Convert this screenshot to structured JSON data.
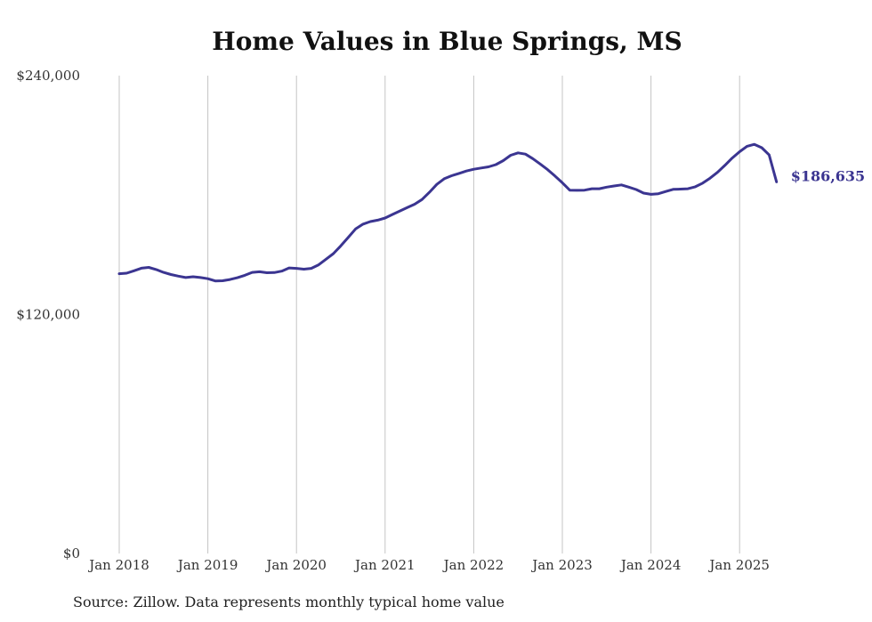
{
  "chart_data": {
    "type": "line",
    "title": "Home Values in Blue Springs, MS",
    "xlabel": "",
    "ylabel": "",
    "x_ticks": [
      "Jan 2018",
      "Jan 2019",
      "Jan 2020",
      "Jan 2021",
      "Jan 2022",
      "Jan 2023",
      "Jan 2024",
      "Jan 2025"
    ],
    "y_ticks": [
      "$0",
      "$120,000",
      "$240,000"
    ],
    "ylim": [
      0,
      240000
    ],
    "xlim": [
      "2018-01",
      "2025-06"
    ],
    "grid": "vertical",
    "legend": "none",
    "line_color": "#3b3591",
    "end_label": "$186,635",
    "series": [
      {
        "x": [
          "2018-01",
          "2018-02",
          "2018-03",
          "2018-04",
          "2018-05",
          "2018-06",
          "2018-07",
          "2018-08",
          "2018-09",
          "2018-10",
          "2018-11",
          "2018-12",
          "2019-01",
          "2019-02",
          "2019-03",
          "2019-04",
          "2019-05",
          "2019-06",
          "2019-07",
          "2019-08",
          "2019-09",
          "2019-10",
          "2019-11",
          "2019-12",
          "2020-01",
          "2020-02",
          "2020-03",
          "2020-04",
          "2020-05",
          "2020-06",
          "2020-07",
          "2020-08",
          "2020-09",
          "2020-10",
          "2020-11",
          "2020-12",
          "2021-01",
          "2021-02",
          "2021-03",
          "2021-04",
          "2021-05",
          "2021-06",
          "2021-07",
          "2021-08",
          "2021-09",
          "2021-10",
          "2021-11",
          "2021-12",
          "2022-01",
          "2022-02",
          "2022-03",
          "2022-04",
          "2022-05",
          "2022-06",
          "2022-07",
          "2022-08",
          "2022-09",
          "2022-10",
          "2022-11",
          "2022-12",
          "2023-01",
          "2023-02",
          "2023-03",
          "2023-04",
          "2023-05",
          "2023-06",
          "2023-07",
          "2023-08",
          "2023-09",
          "2023-10",
          "2023-11",
          "2023-12",
          "2024-01",
          "2024-02",
          "2024-03",
          "2024-04",
          "2024-05",
          "2024-06",
          "2024-07",
          "2024-08",
          "2024-09",
          "2024-10",
          "2024-11",
          "2024-12",
          "2025-01",
          "2025-02",
          "2025-03",
          "2025-04",
          "2025-05",
          "2025-06"
        ],
        "values": [
          140500,
          140800,
          142000,
          143300,
          143700,
          142600,
          141200,
          140100,
          139300,
          138600,
          139000,
          138600,
          138000,
          136900,
          137000,
          137600,
          138500,
          139700,
          141200,
          141500,
          141000,
          141100,
          141800,
          143400,
          143200,
          142800,
          143200,
          145000,
          147800,
          150600,
          154500,
          158700,
          163000,
          165400,
          166700,
          167400,
          168500,
          170300,
          172000,
          173700,
          175400,
          177800,
          181400,
          185400,
          188200,
          189700,
          190900,
          192100,
          193000,
          193600,
          194200,
          195300,
          197300,
          200000,
          201200,
          200600,
          198300,
          195600,
          192800,
          189600,
          186200,
          182500,
          182400,
          182500,
          183200,
          183200,
          184000,
          184600,
          185100,
          184000,
          182800,
          181000,
          180400,
          180700,
          181800,
          182900,
          183000,
          183200,
          184200,
          186000,
          188500,
          191400,
          194900,
          198600,
          201800,
          204500,
          205500,
          203800,
          200200,
          186635
        ]
      }
    ]
  },
  "source_note": "Source: Zillow. Data represents monthly typical home value"
}
